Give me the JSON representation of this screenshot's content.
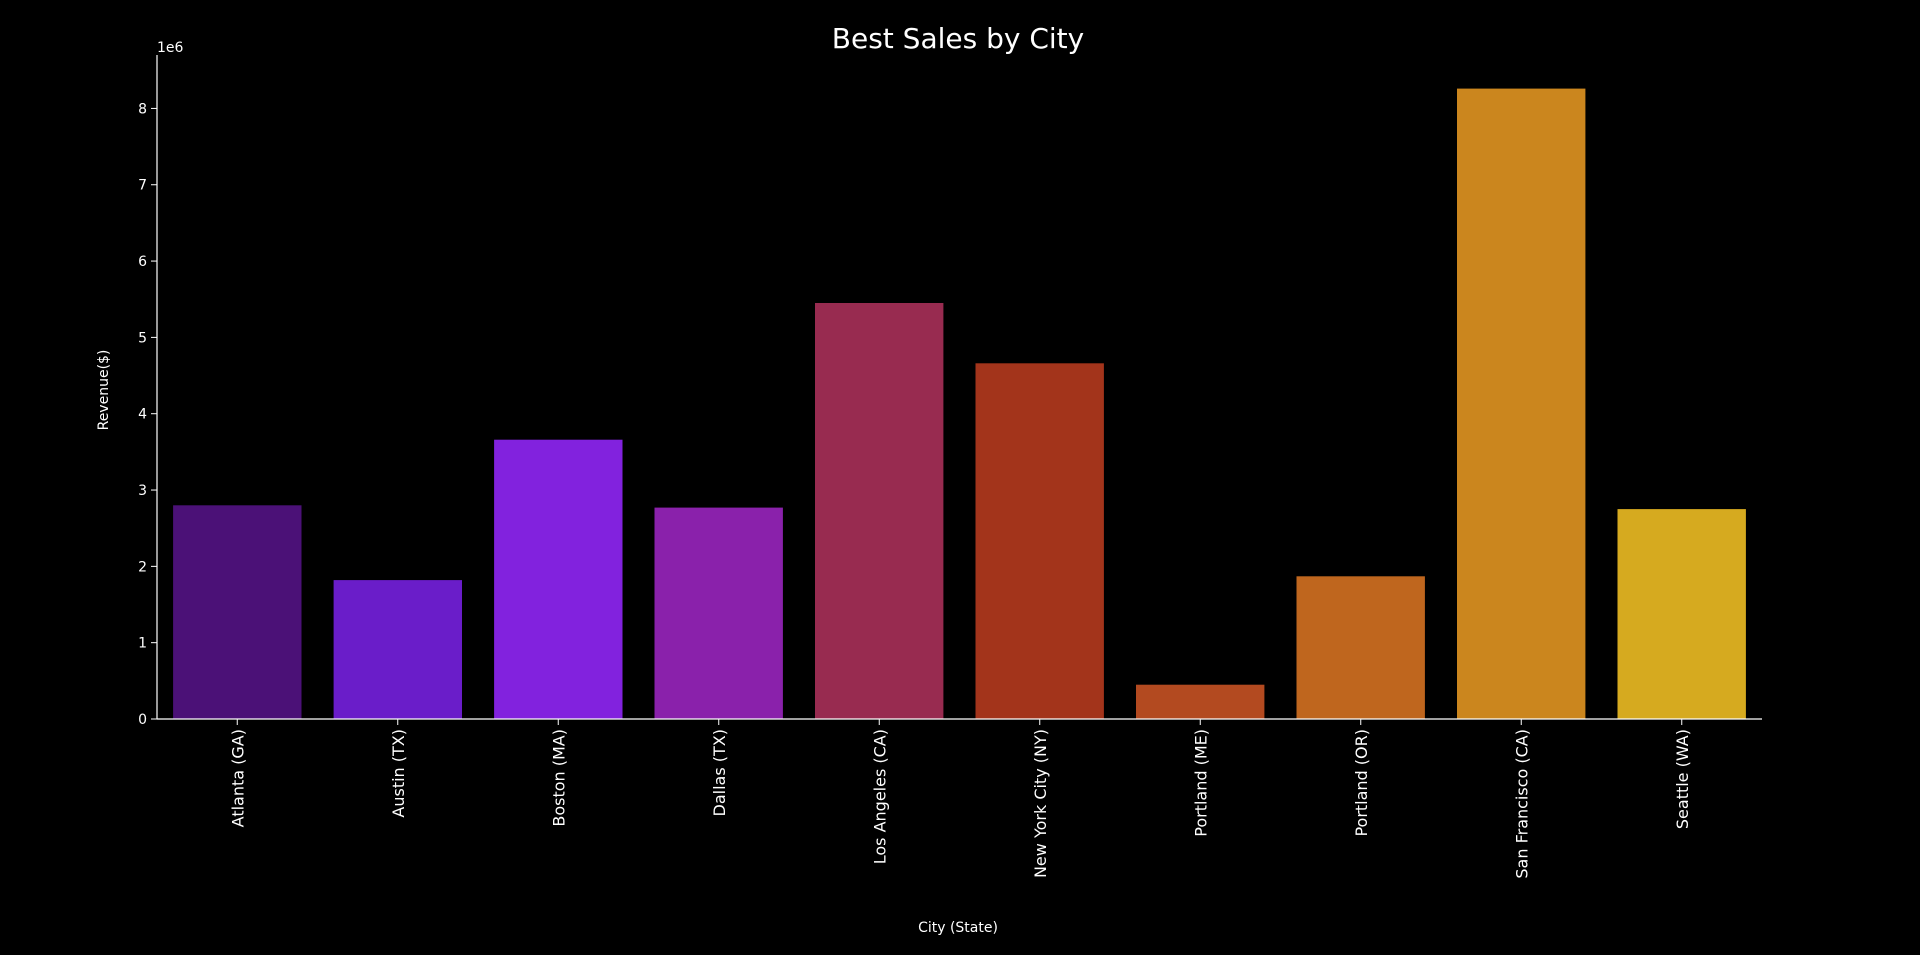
{
  "chart_data": {
    "type": "bar",
    "title": "Best Sales by City",
    "xlabel": "City (State)",
    "ylabel": "Revenue($)",
    "y_multiplier_label": "1e6",
    "ylim": [
      0,
      8.7
    ],
    "yticks": [
      0,
      1,
      2,
      3,
      4,
      5,
      6,
      7,
      8
    ],
    "grid": false,
    "background": "#000000",
    "axis_color": "#ffffff",
    "categories": [
      "Atlanta (GA)",
      "Austin (TX)",
      "Boston (MA)",
      "Dallas (TX)",
      "Los Angeles (CA)",
      "New York City (NY)",
      "Portland (ME)",
      "Portland (OR)",
      "San Francisco (CA)",
      "Seattle (WA)"
    ],
    "values": [
      2.8,
      1.82,
      3.66,
      2.77,
      5.45,
      4.66,
      0.45,
      1.87,
      8.26,
      2.75
    ],
    "colors": [
      "#4b1177",
      "#6a1dc9",
      "#8222de",
      "#8a21ab",
      "#982b50",
      "#a3341b",
      "#b34a20",
      "#bf661e",
      "#cb861e",
      "#d6aa1f"
    ]
  }
}
